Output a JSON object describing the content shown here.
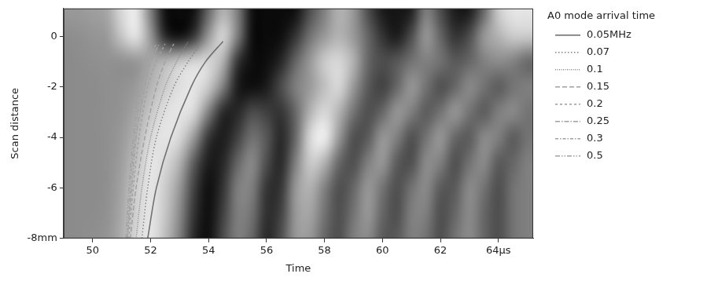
{
  "chart_data": {
    "type": "heatmap",
    "x_label": "Time",
    "y_label": "Scan distance",
    "xlim": [
      49,
      65.2
    ],
    "ylim": [
      -8,
      1.1
    ],
    "xticks": [
      50,
      52,
      54,
      56,
      58,
      60,
      62,
      {
        "value": 64,
        "label": "64µs"
      }
    ],
    "yticks": [
      {
        "value": -8,
        "label": "-8mm"
      },
      -6,
      -4,
      -2,
      0
    ],
    "grid": false,
    "legend": "right",
    "legend_title": "A0 mode arrival time",
    "cells": {
      "x": [
        49,
        49.5,
        50,
        50.5,
        51,
        51.5,
        52,
        52.5,
        53,
        53.5,
        54,
        54.5,
        55,
        55.5,
        56,
        56.5,
        57,
        57.5,
        58,
        58.5,
        59,
        59.5,
        60,
        60.5,
        61,
        61.5,
        62,
        62.5,
        63,
        63.5,
        64,
        64.5,
        65
      ],
      "y": [
        1,
        0,
        -1,
        -2,
        -3,
        -4,
        -5,
        -6,
        -7,
        -8
      ],
      "values": [
        [
          0.6,
          0.6,
          0.62,
          0.65,
          0.85,
          0.92,
          0.5,
          0.06,
          0.04,
          0.06,
          0.4,
          0.7,
          0.5,
          0.06,
          0.04,
          0.04,
          0.06,
          0.3,
          0.5,
          0.7,
          0.6,
          0.3,
          0.1,
          0.08,
          0.12,
          0.5,
          0.3,
          0.1,
          0.1,
          0.4,
          0.8,
          0.9,
          0.9
        ],
        [
          0.55,
          0.56,
          0.58,
          0.6,
          0.78,
          0.9,
          0.6,
          0.15,
          0.05,
          0.2,
          0.6,
          0.85,
          0.5,
          0.05,
          0.04,
          0.05,
          0.2,
          0.45,
          0.6,
          0.7,
          0.6,
          0.4,
          0.2,
          0.1,
          0.3,
          0.6,
          0.4,
          0.2,
          0.3,
          0.6,
          0.7,
          0.8,
          0.8
        ],
        [
          0.54,
          0.55,
          0.56,
          0.57,
          0.56,
          0.58,
          0.65,
          0.72,
          0.8,
          0.85,
          0.85,
          0.7,
          0.2,
          0.05,
          0.05,
          0.15,
          0.4,
          0.6,
          0.8,
          0.85,
          0.7,
          0.4,
          0.3,
          0.35,
          0.45,
          0.5,
          0.45,
          0.35,
          0.4,
          0.5,
          0.55,
          0.5,
          0.4
        ],
        [
          0.54,
          0.55,
          0.55,
          0.56,
          0.57,
          0.6,
          0.7,
          0.8,
          0.88,
          0.9,
          0.8,
          0.5,
          0.1,
          0.05,
          0.1,
          0.3,
          0.5,
          0.6,
          0.75,
          0.85,
          0.6,
          0.35,
          0.25,
          0.4,
          0.6,
          0.45,
          0.3,
          0.4,
          0.55,
          0.45,
          0.35,
          0.45,
          0.5
        ],
        [
          0.54,
          0.55,
          0.55,
          0.56,
          0.58,
          0.65,
          0.78,
          0.88,
          0.9,
          0.85,
          0.5,
          0.15,
          0.15,
          0.3,
          0.25,
          0.2,
          0.4,
          0.7,
          0.85,
          0.7,
          0.45,
          0.3,
          0.4,
          0.6,
          0.5,
          0.35,
          0.45,
          0.6,
          0.45,
          0.35,
          0.5,
          0.55,
          0.45
        ],
        [
          0.54,
          0.55,
          0.55,
          0.56,
          0.6,
          0.7,
          0.85,
          0.9,
          0.85,
          0.6,
          0.2,
          0.1,
          0.25,
          0.45,
          0.35,
          0.15,
          0.4,
          0.85,
          0.95,
          0.6,
          0.3,
          0.35,
          0.6,
          0.5,
          0.3,
          0.45,
          0.6,
          0.4,
          0.35,
          0.55,
          0.5,
          0.35,
          0.45
        ],
        [
          0.54,
          0.55,
          0.55,
          0.56,
          0.62,
          0.75,
          0.9,
          0.85,
          0.7,
          0.35,
          0.1,
          0.15,
          0.4,
          0.55,
          0.3,
          0.15,
          0.5,
          0.8,
          0.7,
          0.4,
          0.3,
          0.5,
          0.6,
          0.35,
          0.3,
          0.55,
          0.5,
          0.3,
          0.45,
          0.55,
          0.35,
          0.4,
          0.5
        ],
        [
          0.54,
          0.55,
          0.55,
          0.56,
          0.64,
          0.8,
          0.9,
          0.8,
          0.6,
          0.25,
          0.05,
          0.2,
          0.5,
          0.5,
          0.2,
          0.2,
          0.6,
          0.7,
          0.5,
          0.3,
          0.4,
          0.6,
          0.45,
          0.3,
          0.45,
          0.55,
          0.35,
          0.35,
          0.55,
          0.45,
          0.3,
          0.45,
          0.5
        ],
        [
          0.54,
          0.55,
          0.55,
          0.57,
          0.66,
          0.82,
          0.9,
          0.78,
          0.55,
          0.2,
          0.05,
          0.25,
          0.5,
          0.45,
          0.18,
          0.25,
          0.6,
          0.65,
          0.45,
          0.3,
          0.45,
          0.6,
          0.4,
          0.3,
          0.5,
          0.5,
          0.3,
          0.4,
          0.55,
          0.4,
          0.3,
          0.45,
          0.5
        ],
        [
          0.54,
          0.55,
          0.56,
          0.58,
          0.68,
          0.85,
          0.9,
          0.75,
          0.5,
          0.15,
          0.05,
          0.3,
          0.5,
          0.4,
          0.15,
          0.3,
          0.6,
          0.6,
          0.4,
          0.3,
          0.5,
          0.55,
          0.35,
          0.35,
          0.5,
          0.45,
          0.3,
          0.45,
          0.55,
          0.4,
          0.3,
          0.45,
          0.5
        ]
      ]
    },
    "series": [
      {
        "name": "0.05MHz",
        "type": "line",
        "color": "#707070",
        "line_style": "solid",
        "x": [
          51.9,
          52.2,
          52.7,
          53.4,
          53.9,
          54.5
        ],
        "y": [
          -8,
          -6,
          -4,
          -2,
          -1,
          -0.2
        ]
      },
      {
        "name": "0.07",
        "type": "line",
        "color": "#808080",
        "line_style": "dotted",
        "x": [
          51.7,
          51.9,
          52.2,
          52.8,
          53.3,
          53.8
        ],
        "y": [
          -8,
          -6,
          -4,
          -2,
          -1,
          -0.2
        ]
      },
      {
        "name": "0.1",
        "type": "line",
        "color": "#888888",
        "line_style": "densely_dotted",
        "x": [
          51.5,
          51.7,
          52.0,
          52.5,
          52.9,
          53.3
        ],
        "y": [
          -8,
          -6,
          -4,
          -2,
          -1,
          -0.2
        ]
      },
      {
        "name": "0.15",
        "type": "line",
        "color": "#a0a0a0",
        "line_style": "dashed",
        "x": [
          51.3,
          51.5,
          51.8,
          52.2,
          52.5,
          52.8
        ],
        "y": [
          -8,
          -6,
          -4,
          -2,
          -1,
          -0.3
        ]
      },
      {
        "name": "0.2",
        "type": "line",
        "color": "#a0a0a0",
        "line_style": "loosely_dashed",
        "x": [
          51.25,
          51.4,
          51.6,
          51.9,
          52.2,
          52.5
        ],
        "y": [
          -8,
          -6,
          -4,
          -2,
          -1,
          -0.3
        ]
      },
      {
        "name": "0.25",
        "type": "line",
        "color": "#a0a0a0",
        "line_style": "dashdot",
        "x": [
          51.2,
          51.35,
          51.5,
          51.8,
          52.0,
          52.3
        ],
        "y": [
          -8,
          -6,
          -4,
          -2,
          -1,
          -0.3
        ]
      },
      {
        "name": "0.3",
        "type": "line",
        "color": "#a0a0a0",
        "line_style": "densely_dashdot",
        "x": [
          51.2,
          51.3,
          51.45,
          51.7,
          51.9,
          52.2
        ],
        "y": [
          -8,
          -6,
          -4,
          -2,
          -1,
          -0.3
        ]
      },
      {
        "name": "0.5",
        "type": "line",
        "color": "#a0a0a0",
        "line_style": "dashdotdot",
        "x": [
          51.15,
          51.25,
          51.4,
          51.6,
          51.8,
          52.0
        ],
        "y": [
          -8,
          -6,
          -4,
          -2,
          -1,
          -0.3
        ]
      }
    ]
  }
}
